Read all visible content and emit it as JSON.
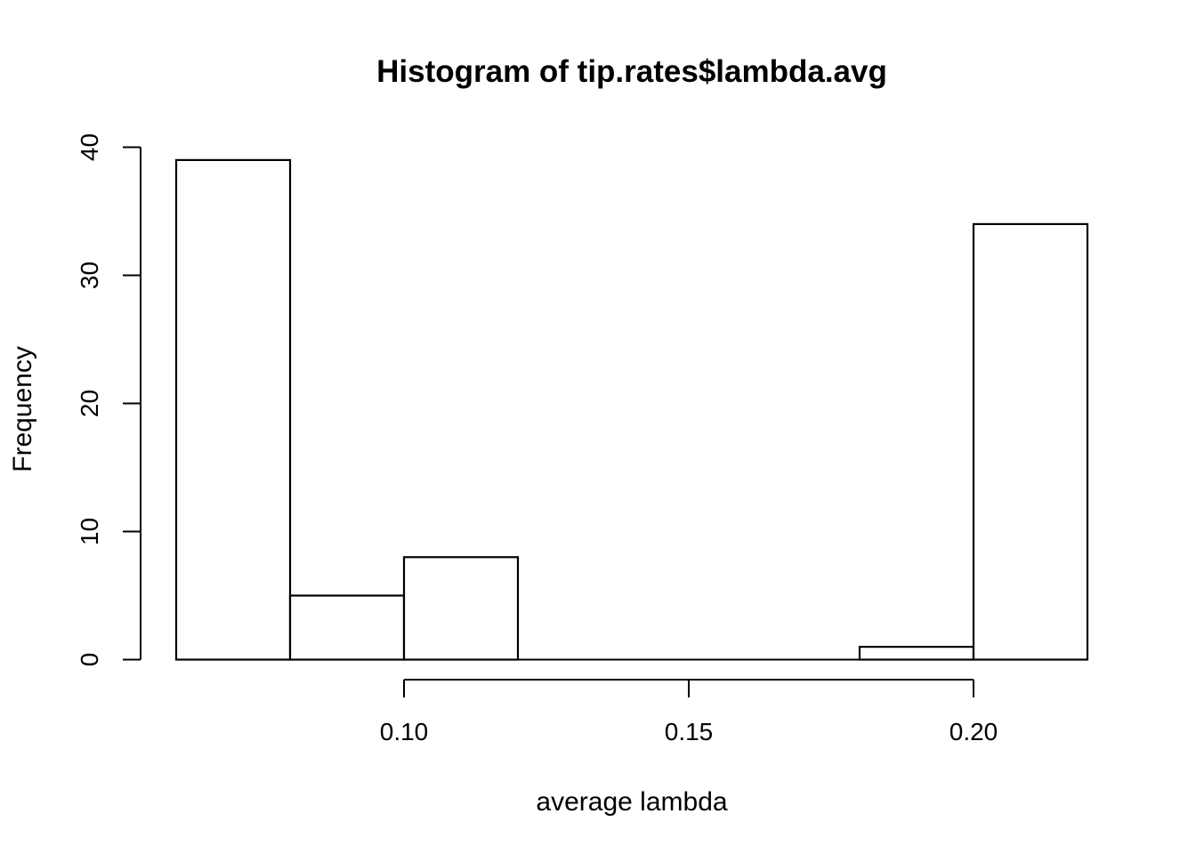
{
  "chart_data": {
    "type": "bar",
    "title": "Histogram of tip.rates$lambda.avg",
    "xlabel": "average lambda",
    "ylabel": "Frequency",
    "bins": [
      {
        "start": 0.06,
        "end": 0.08,
        "count": 39
      },
      {
        "start": 0.08,
        "end": 0.1,
        "count": 5
      },
      {
        "start": 0.1,
        "end": 0.12,
        "count": 8
      },
      {
        "start": 0.12,
        "end": 0.14,
        "count": 0
      },
      {
        "start": 0.14,
        "end": 0.16,
        "count": 0
      },
      {
        "start": 0.16,
        "end": 0.18,
        "count": 0
      },
      {
        "start": 0.18,
        "end": 0.2,
        "count": 1
      },
      {
        "start": 0.2,
        "end": 0.22,
        "count": 34
      }
    ],
    "xlim": [
      0.06,
      0.22
    ],
    "ylim": [
      0,
      40
    ],
    "x_ticks": [
      {
        "value": 0.1,
        "label": "0.10"
      },
      {
        "value": 0.15,
        "label": "0.15"
      },
      {
        "value": 0.2,
        "label": "0.20"
      }
    ],
    "y_ticks": [
      {
        "value": 0,
        "label": "0"
      },
      {
        "value": 10,
        "label": "10"
      },
      {
        "value": 20,
        "label": "20"
      },
      {
        "value": 30,
        "label": "30"
      },
      {
        "value": 40,
        "label": "40"
      }
    ],
    "grid": false,
    "legend": "none"
  }
}
